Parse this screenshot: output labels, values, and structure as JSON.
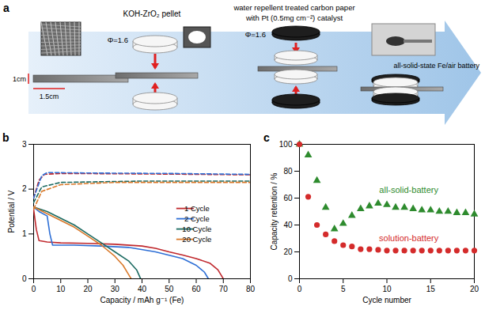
{
  "panel_a": {
    "letter": "a",
    "pellet_title": "KOH-ZrO₂ pellet",
    "diameter_left": "Φ=1.6",
    "carbon_paper_line1": "water repellent treated carbon paper",
    "carbon_paper_line2": "with Pt (0.5mg cm⁻²) catalyst",
    "diameter_right": "Φ=1.6",
    "height_label": "1cm",
    "width_label": "1.5cm",
    "battery_label": "all-solid-state Fe/air battery"
  },
  "chart_data": [
    {
      "panel": "b",
      "type": "line",
      "x_label": "Capacity / mAh g⁻¹ (Fe)",
      "y_label": "Potential / V",
      "xlim": [
        0,
        80
      ],
      "xticks": [
        0,
        10,
        20,
        30,
        40,
        50,
        60,
        70,
        80
      ],
      "ylim": [
        0,
        3
      ],
      "yticks": [
        0,
        1,
        2,
        3
      ],
      "legend": "right",
      "series": [
        {
          "name": "1 Cycle",
          "color": "#c0282d",
          "segments": [
            {
              "line_style": "solid",
              "x": [
                0,
                1,
                2,
                5,
                10,
                20,
                30,
                40,
                45,
                50,
                55,
                60,
                65,
                68,
                70
              ],
              "values": [
                1.55,
                1.1,
                0.85,
                0.82,
                0.8,
                0.79,
                0.77,
                0.73,
                0.68,
                0.6,
                0.53,
                0.45,
                0.35,
                0.2,
                0
              ]
            },
            {
              "line_style": "dashed",
              "x": [
                0,
                2,
                4,
                10,
                40,
                80
              ],
              "values": [
                1.8,
                2.2,
                2.33,
                2.35,
                2.34,
                2.32
              ]
            }
          ]
        },
        {
          "name": "2 Cycle",
          "color": "#2e6fd6",
          "segments": [
            {
              "line_style": "solid",
              "x": [
                0,
                2,
                5,
                6,
                7,
                15,
                25,
                35,
                45,
                55,
                60,
                63,
                64.5
              ],
              "values": [
                1.6,
                1.5,
                1.4,
                1.0,
                0.75,
                0.75,
                0.73,
                0.7,
                0.6,
                0.45,
                0.3,
                0.15,
                0
              ]
            },
            {
              "line_style": "dashed",
              "x": [
                0,
                3,
                5,
                20,
                50,
                80
              ],
              "values": [
                1.8,
                2.3,
                2.37,
                2.36,
                2.35,
                2.33
              ]
            }
          ]
        },
        {
          "name": "10 Cycle",
          "color": "#1d6b62",
          "segments": [
            {
              "line_style": "solid",
              "x": [
                0,
                5,
                10,
                15,
                20,
                25,
                30,
                35,
                38,
                39.5
              ],
              "values": [
                1.6,
                1.5,
                1.35,
                1.2,
                1.0,
                0.8,
                0.6,
                0.4,
                0.2,
                0
              ]
            },
            {
              "line_style": "dashed",
              "x": [
                0,
                3,
                10,
                40,
                80
              ],
              "values": [
                1.7,
                2.05,
                2.15,
                2.18,
                2.18
              ]
            }
          ]
        },
        {
          "name": "20 Cycle",
          "color": "#d9792a",
          "segments": [
            {
              "line_style": "solid",
              "x": [
                0,
                5,
                10,
                15,
                20,
                25,
                30,
                33,
                35,
                36
              ],
              "values": [
                1.6,
                1.45,
                1.3,
                1.15,
                0.95,
                0.75,
                0.5,
                0.3,
                0.1,
                0
              ]
            },
            {
              "line_style": "dashed",
              "x": [
                0,
                3,
                10,
                30,
                80
              ],
              "values": [
                1.55,
                1.95,
                2.1,
                2.15,
                2.15
              ]
            }
          ]
        }
      ]
    },
    {
      "panel": "c",
      "type": "scatter",
      "x_label": "Cycle number",
      "y_label": "Capacity retention / %",
      "xlim": [
        0,
        20
      ],
      "xticks": [
        0,
        5,
        10,
        15,
        20
      ],
      "ylim": [
        0,
        100
      ],
      "yticks": [
        0,
        20,
        40,
        60,
        80,
        100
      ],
      "series": [
        {
          "name": "all-solid-battery",
          "color": "#2e8b2e",
          "marker": "triangle",
          "x": [
            0,
            1,
            2,
            3,
            4,
            5,
            6,
            7,
            8,
            9,
            10,
            11,
            12,
            13,
            14,
            15,
            16,
            17,
            18,
            19,
            20
          ],
          "values": [
            100,
            92,
            73,
            53,
            37,
            41,
            47,
            52,
            54,
            56,
            55,
            53,
            53,
            52,
            51,
            51,
            50,
            50,
            49,
            49,
            48
          ]
        },
        {
          "name": "solution-battery",
          "color": "#d42b2b",
          "marker": "circle",
          "x": [
            0,
            1,
            2,
            3,
            4,
            5,
            6,
            7,
            8,
            9,
            10,
            11,
            12,
            13,
            14,
            15,
            16,
            17,
            18,
            19,
            20
          ],
          "values": [
            100,
            61,
            40,
            33,
            28,
            25,
            24,
            22,
            22,
            21.5,
            21,
            21,
            21,
            21,
            21,
            21,
            21,
            21,
            21,
            21,
            21
          ]
        }
      ]
    }
  ]
}
